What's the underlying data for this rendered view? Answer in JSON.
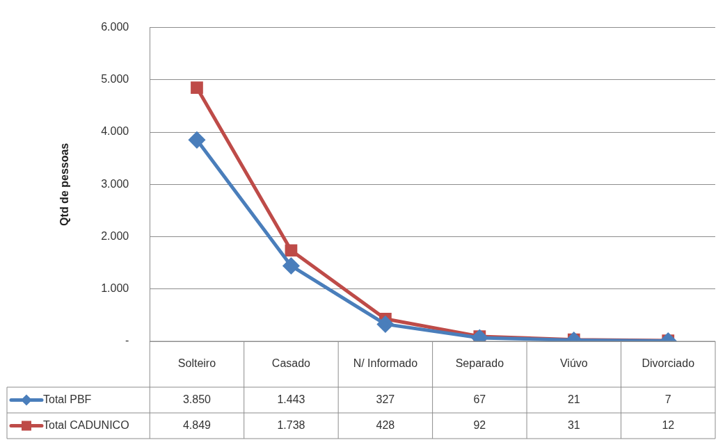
{
  "chart_data": {
    "type": "line",
    "ylabel": "Qtd de pessoas",
    "categories": [
      "Solteiro",
      "Casado",
      "N/ Informado",
      "Separado",
      "Viúvo",
      "Divorciado"
    ],
    "series": [
      {
        "name": "Total PBF",
        "color": "#4a7ebb",
        "marker": "diamond",
        "values": [
          3850,
          1443,
          327,
          67,
          21,
          7
        ],
        "value_labels": [
          "3.850",
          "1.443",
          "327",
          "67",
          "21",
          "7"
        ]
      },
      {
        "name": "Total CADUNICO",
        "color": "#be4b48",
        "marker": "square",
        "values": [
          4849,
          1738,
          428,
          92,
          31,
          12
        ],
        "value_labels": [
          "4.849",
          "1.738",
          "428",
          "92",
          "31",
          "12"
        ]
      }
    ],
    "ylim": [
      0,
      6000
    ],
    "yticks": [
      {
        "value": 0,
        "label": "-"
      },
      {
        "value": 1000,
        "label": "1.000"
      },
      {
        "value": 2000,
        "label": "2.000"
      },
      {
        "value": 3000,
        "label": "3.000"
      },
      {
        "value": 4000,
        "label": "4.000"
      },
      {
        "value": 5000,
        "label": "5.000"
      },
      {
        "value": 6000,
        "label": "6.000"
      }
    ],
    "grid": "y",
    "legend": "bottom left",
    "line_style": "solid"
  }
}
